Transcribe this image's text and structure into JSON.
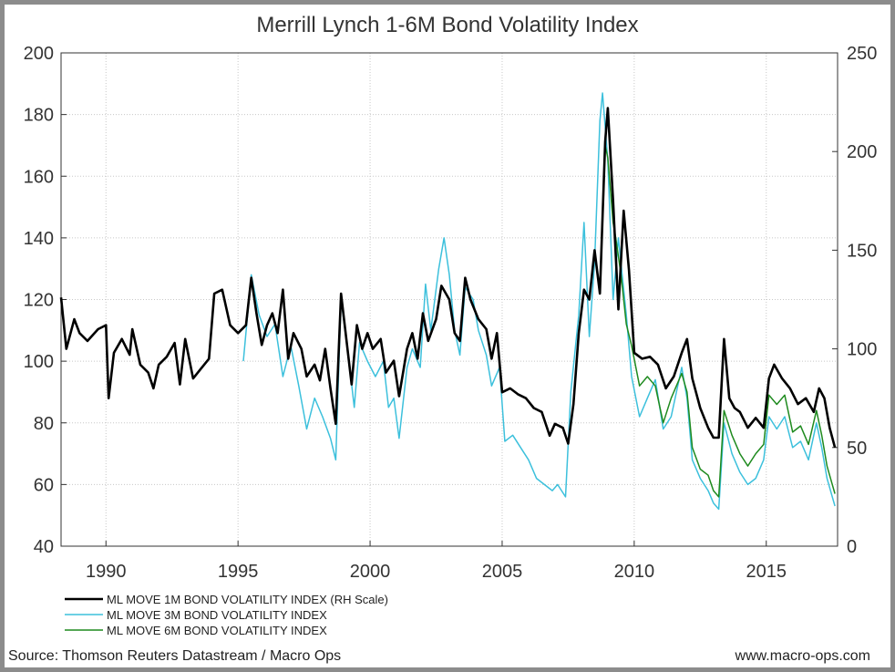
{
  "chart_data": {
    "type": "line",
    "title": "Merrill Lynch 1-6M Bond Volatility Index",
    "x_range": [
      1988.3,
      2017.7
    ],
    "x_ticks": [
      "1990",
      "1995",
      "2000",
      "2005",
      "2010",
      "2015"
    ],
    "x_tick_values": [
      1990,
      1995,
      2000,
      2005,
      2010,
      2015
    ],
    "y_left": {
      "range": [
        40,
        200
      ],
      "ticks": [
        "40",
        "60",
        "80",
        "100",
        "120",
        "140",
        "160",
        "180",
        "200"
      ]
    },
    "y_right": {
      "range": [
        0,
        250
      ],
      "ticks": [
        "0",
        "50",
        "100",
        "150",
        "200",
        "250"
      ]
    },
    "grid": true,
    "legend_position": "bottom-left",
    "series": [
      {
        "name": "ML MOVE 1M BOND VOLATILITY INDEX (RH Scale)",
        "axis": "right",
        "color": "#000000",
        "points": [
          [
            1988.3,
            126
          ],
          [
            1988.5,
            100
          ],
          [
            1988.8,
            115
          ],
          [
            1989.0,
            108
          ],
          [
            1989.3,
            104
          ],
          [
            1989.7,
            110
          ],
          [
            1990.0,
            112
          ],
          [
            1990.1,
            75
          ],
          [
            1990.3,
            98
          ],
          [
            1990.6,
            105
          ],
          [
            1990.9,
            97
          ],
          [
            1991.0,
            110
          ],
          [
            1991.3,
            92
          ],
          [
            1991.6,
            88
          ],
          [
            1991.8,
            80
          ],
          [
            1992.0,
            92
          ],
          [
            1992.3,
            96
          ],
          [
            1992.6,
            103
          ],
          [
            1992.8,
            82
          ],
          [
            1993.0,
            105
          ],
          [
            1993.3,
            85
          ],
          [
            1993.6,
            90
          ],
          [
            1993.9,
            95
          ],
          [
            1994.1,
            128
          ],
          [
            1994.4,
            130
          ],
          [
            1994.7,
            112
          ],
          [
            1995.0,
            108
          ],
          [
            1995.3,
            112
          ],
          [
            1995.5,
            136
          ],
          [
            1995.7,
            118
          ],
          [
            1995.9,
            102
          ],
          [
            1996.1,
            112
          ],
          [
            1996.3,
            118
          ],
          [
            1996.5,
            108
          ],
          [
            1996.7,
            130
          ],
          [
            1996.9,
            95
          ],
          [
            1997.1,
            108
          ],
          [
            1997.4,
            100
          ],
          [
            1997.6,
            86
          ],
          [
            1997.9,
            92
          ],
          [
            1998.1,
            84
          ],
          [
            1998.3,
            100
          ],
          [
            1998.5,
            80
          ],
          [
            1998.7,
            62
          ],
          [
            1998.9,
            128
          ],
          [
            1999.1,
            105
          ],
          [
            1999.3,
            82
          ],
          [
            1999.5,
            112
          ],
          [
            1999.7,
            100
          ],
          [
            1999.9,
            108
          ],
          [
            2000.1,
            100
          ],
          [
            2000.4,
            105
          ],
          [
            2000.6,
            88
          ],
          [
            2000.9,
            94
          ],
          [
            2001.1,
            76
          ],
          [
            2001.4,
            100
          ],
          [
            2001.6,
            108
          ],
          [
            2001.8,
            95
          ],
          [
            2002.0,
            118
          ],
          [
            2002.2,
            104
          ],
          [
            2002.5,
            115
          ],
          [
            2002.7,
            132
          ],
          [
            2003.0,
            125
          ],
          [
            2003.2,
            108
          ],
          [
            2003.4,
            104
          ],
          [
            2003.6,
            136
          ],
          [
            2003.8,
            125
          ],
          [
            2004.1,
            115
          ],
          [
            2004.4,
            110
          ],
          [
            2004.6,
            95
          ],
          [
            2004.8,
            108
          ],
          [
            2005.0,
            78
          ],
          [
            2005.3,
            80
          ],
          [
            2005.6,
            77
          ],
          [
            2005.9,
            75
          ],
          [
            2006.2,
            70
          ],
          [
            2006.5,
            68
          ],
          [
            2006.8,
            56
          ],
          [
            2007.0,
            62
          ],
          [
            2007.3,
            60
          ],
          [
            2007.5,
            52
          ],
          [
            2007.7,
            72
          ],
          [
            2007.9,
            108
          ],
          [
            2008.1,
            130
          ],
          [
            2008.3,
            125
          ],
          [
            2008.5,
            150
          ],
          [
            2008.7,
            128
          ],
          [
            2008.9,
            205
          ],
          [
            2009.0,
            222
          ],
          [
            2009.2,
            175
          ],
          [
            2009.4,
            120
          ],
          [
            2009.6,
            170
          ],
          [
            2009.8,
            140
          ],
          [
            2010.0,
            98
          ],
          [
            2010.3,
            95
          ],
          [
            2010.6,
            96
          ],
          [
            2010.9,
            92
          ],
          [
            2011.2,
            80
          ],
          [
            2011.5,
            86
          ],
          [
            2011.8,
            98
          ],
          [
            2012.0,
            105
          ],
          [
            2012.2,
            85
          ],
          [
            2012.5,
            70
          ],
          [
            2012.8,
            60
          ],
          [
            2013.0,
            55
          ],
          [
            2013.2,
            55
          ],
          [
            2013.4,
            105
          ],
          [
            2013.6,
            75
          ],
          [
            2013.8,
            70
          ],
          [
            2014.0,
            68
          ],
          [
            2014.3,
            60
          ],
          [
            2014.6,
            65
          ],
          [
            2014.9,
            60
          ],
          [
            2015.1,
            85
          ],
          [
            2015.3,
            92
          ],
          [
            2015.6,
            85
          ],
          [
            2015.9,
            80
          ],
          [
            2016.2,
            72
          ],
          [
            2016.5,
            75
          ],
          [
            2016.8,
            68
          ],
          [
            2017.0,
            80
          ],
          [
            2017.2,
            75
          ],
          [
            2017.4,
            60
          ],
          [
            2017.6,
            50
          ]
        ]
      },
      {
        "name": "ML MOVE 3M BOND VOLATILITY INDEX",
        "axis": "left",
        "color": "#3cc0dc",
        "points": [
          [
            1995.2,
            100
          ],
          [
            1995.5,
            128
          ],
          [
            1995.8,
            115
          ],
          [
            1996.1,
            108
          ],
          [
            1996.4,
            112
          ],
          [
            1996.7,
            95
          ],
          [
            1997.0,
            105
          ],
          [
            1997.3,
            92
          ],
          [
            1997.6,
            78
          ],
          [
            1997.9,
            88
          ],
          [
            1998.2,
            82
          ],
          [
            1998.5,
            75
          ],
          [
            1998.7,
            68
          ],
          [
            1998.9,
            120
          ],
          [
            1999.2,
            100
          ],
          [
            1999.4,
            85
          ],
          [
            1999.6,
            106
          ],
          [
            1999.9,
            100
          ],
          [
            2000.2,
            95
          ],
          [
            2000.5,
            100
          ],
          [
            2000.7,
            85
          ],
          [
            2000.9,
            88
          ],
          [
            2001.1,
            75
          ],
          [
            2001.4,
            98
          ],
          [
            2001.6,
            104
          ],
          [
            2001.9,
            98
          ],
          [
            2002.1,
            125
          ],
          [
            2002.3,
            110
          ],
          [
            2002.6,
            130
          ],
          [
            2002.8,
            140
          ],
          [
            2003.0,
            128
          ],
          [
            2003.2,
            110
          ],
          [
            2003.4,
            102
          ],
          [
            2003.6,
            124
          ],
          [
            2003.9,
            120
          ],
          [
            2004.1,
            110
          ],
          [
            2004.4,
            102
          ],
          [
            2004.6,
            92
          ],
          [
            2004.9,
            98
          ],
          [
            2005.1,
            74
          ],
          [
            2005.4,
            76
          ],
          [
            2005.7,
            72
          ],
          [
            2006.0,
            68
          ],
          [
            2006.3,
            62
          ],
          [
            2006.6,
            60
          ],
          [
            2006.9,
            58
          ],
          [
            2007.1,
            60
          ],
          [
            2007.4,
            56
          ],
          [
            2007.6,
            90
          ],
          [
            2007.9,
            115
          ],
          [
            2008.1,
            145
          ],
          [
            2008.3,
            108
          ],
          [
            2008.5,
            132
          ],
          [
            2008.7,
            178
          ],
          [
            2008.8,
            187
          ],
          [
            2009.0,
            165
          ],
          [
            2009.2,
            120
          ],
          [
            2009.4,
            140
          ],
          [
            2009.7,
            115
          ],
          [
            2009.9,
            95
          ],
          [
            2010.2,
            82
          ],
          [
            2010.5,
            88
          ],
          [
            2010.8,
            94
          ],
          [
            2011.1,
            78
          ],
          [
            2011.4,
            82
          ],
          [
            2011.8,
            98
          ],
          [
            2012.0,
            88
          ],
          [
            2012.2,
            68
          ],
          [
            2012.5,
            62
          ],
          [
            2012.8,
            58
          ],
          [
            2013.0,
            54
          ],
          [
            2013.2,
            52
          ],
          [
            2013.4,
            80
          ],
          [
            2013.7,
            70
          ],
          [
            2014.0,
            64
          ],
          [
            2014.3,
            60
          ],
          [
            2014.6,
            62
          ],
          [
            2014.9,
            68
          ],
          [
            2015.1,
            82
          ],
          [
            2015.4,
            78
          ],
          [
            2015.7,
            82
          ],
          [
            2016.0,
            72
          ],
          [
            2016.3,
            74
          ],
          [
            2016.6,
            68
          ],
          [
            2016.9,
            80
          ],
          [
            2017.1,
            72
          ],
          [
            2017.3,
            62
          ],
          [
            2017.5,
            56
          ],
          [
            2017.6,
            53
          ]
        ]
      },
      {
        "name": "ML MOVE 6M BOND VOLATILITY INDEX",
        "axis": "left",
        "color": "#1e8a1e",
        "points": [
          [
            2008.9,
            170
          ],
          [
            2009.0,
            166
          ],
          [
            2009.2,
            145
          ],
          [
            2009.3,
            140
          ],
          [
            2009.5,
            128
          ],
          [
            2009.7,
            112
          ],
          [
            2009.9,
            105
          ],
          [
            2010.2,
            92
          ],
          [
            2010.5,
            95
          ],
          [
            2010.8,
            92
          ],
          [
            2011.1,
            80
          ],
          [
            2011.4,
            88
          ],
          [
            2011.8,
            96
          ],
          [
            2012.0,
            90
          ],
          [
            2012.2,
            72
          ],
          [
            2012.5,
            65
          ],
          [
            2012.8,
            63
          ],
          [
            2013.0,
            58
          ],
          [
            2013.2,
            56
          ],
          [
            2013.4,
            84
          ],
          [
            2013.7,
            76
          ],
          [
            2014.0,
            70
          ],
          [
            2014.3,
            66
          ],
          [
            2014.6,
            70
          ],
          [
            2014.9,
            73
          ],
          [
            2015.1,
            89
          ],
          [
            2015.4,
            86
          ],
          [
            2015.7,
            89
          ],
          [
            2016.0,
            77
          ],
          [
            2016.3,
            79
          ],
          [
            2016.6,
            73
          ],
          [
            2016.9,
            84
          ],
          [
            2017.1,
            76
          ],
          [
            2017.3,
            66
          ],
          [
            2017.5,
            60
          ],
          [
            2017.6,
            57
          ]
        ]
      }
    ]
  },
  "footer": {
    "source": "Source: Thomson Reuters Datastream / Macro Ops",
    "website": "www.macro-ops.com"
  }
}
